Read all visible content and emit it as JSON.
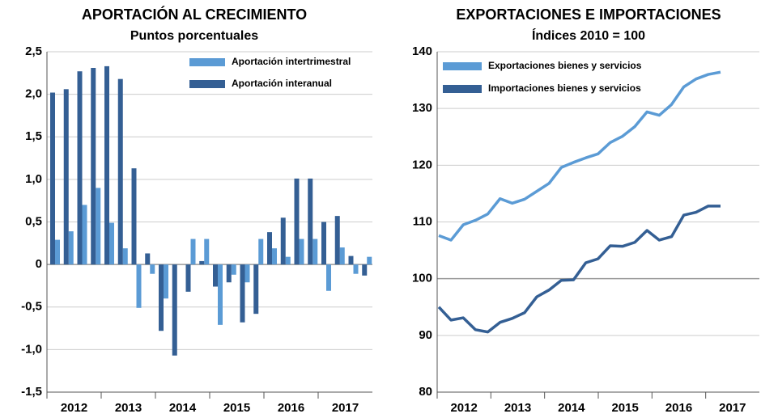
{
  "chart_data": [
    {
      "type": "bar",
      "title": "APORTACIÓN AL CRECIMIENTO",
      "subtitle": "Puntos porcentuales",
      "categories": [
        "2012",
        null,
        null,
        null,
        "2013",
        null,
        null,
        null,
        "2014",
        null,
        null,
        null,
        "2015",
        null,
        null,
        null,
        "2016",
        null,
        null,
        null,
        "2017",
        null,
        null,
        null
      ],
      "series": [
        {
          "name": "Aportación intertrimestral",
          "color": "#5b9bd5",
          "values": [
            0.29,
            0.39,
            0.7,
            0.9,
            0.49,
            0.19,
            -0.51,
            -0.11,
            -0.4,
            0,
            0.3,
            0.3,
            -0.71,
            -0.12,
            -0.21,
            0.3,
            0.19,
            0.09,
            0.3,
            0.3,
            -0.31,
            0.2,
            -0.11,
            0.09
          ]
        },
        {
          "name": "Aportación interanual",
          "color": "#345f94",
          "values": [
            2.02,
            2.06,
            2.27,
            2.31,
            2.33,
            2.18,
            1.13,
            0.13,
            -0.78,
            -1.07,
            -0.32,
            0.04,
            -0.26,
            -0.21,
            -0.68,
            -0.58,
            0.38,
            0.55,
            1.01,
            1.01,
            0.5,
            0.57,
            0.1,
            -0.13
          ]
        }
      ],
      "ylim": [
        -1.5,
        2.5
      ],
      "yticks": [
        {
          "value": -1.5,
          "label": "-1,5"
        },
        {
          "value": -1,
          "label": "-1,0"
        },
        {
          "value": -0.5,
          "label": "-0,5"
        },
        0,
        {
          "value": 0.5,
          "label": "0,5"
        },
        {
          "value": 1,
          "label": "1,0"
        },
        {
          "value": 1.5,
          "label": "1,5"
        },
        {
          "value": 2,
          "label": "2,0"
        },
        {
          "value": 2.5,
          "label": "2,5"
        }
      ],
      "grid": true
    },
    {
      "type": "line",
      "title": "EXPORTACIONES E IMPORTACIONES",
      "subtitle": "Índices 2010 = 100",
      "categories": [
        "2012",
        null,
        null,
        null,
        "2013",
        null,
        null,
        null,
        "2014",
        null,
        null,
        null,
        "2015",
        null,
        null,
        null,
        "2016",
        null,
        null,
        null,
        "2017",
        null,
        null,
        null
      ],
      "series": [
        {
          "name": "Exportaciones bienes y servicios",
          "color": "#5b9bd5",
          "values": [
            107.6,
            106.8,
            109.5,
            110.3,
            111.4,
            114.1,
            113.3,
            114.0,
            115.4,
            116.8,
            119.6,
            120.5,
            121.3,
            122.0,
            124.0,
            125.1,
            126.8,
            129.4,
            128.8,
            130.7,
            133.8,
            135.2,
            136.0,
            136.4
          ]
        },
        {
          "name": "Importaciones bienes y servicios",
          "color": "#345f94",
          "values": [
            95.0,
            92.7,
            93.1,
            91.0,
            90.6,
            92.3,
            93.0,
            94.0,
            96.8,
            98.0,
            99.7,
            99.8,
            102.8,
            103.5,
            105.8,
            105.7,
            106.4,
            108.5,
            106.8,
            107.4,
            111.2,
            111.7,
            112.8,
            112.8
          ]
        }
      ],
      "ylim": [
        80,
        140
      ],
      "yticks": [
        80,
        90,
        100,
        110,
        120,
        130,
        140
      ],
      "grid": true
    }
  ]
}
